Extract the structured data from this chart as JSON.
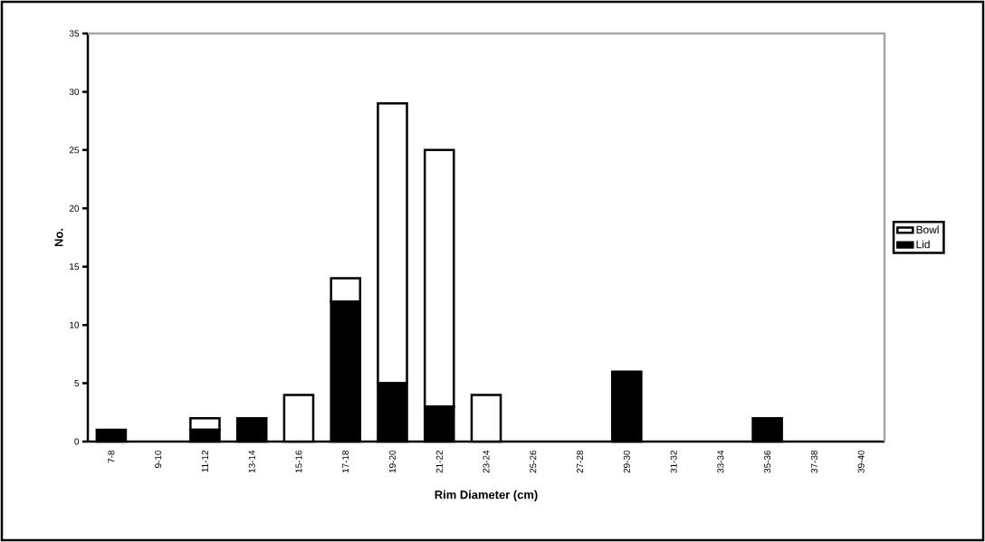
{
  "chart_data": {
    "type": "bar",
    "stacked": true,
    "xlabel": "Rim Diameter (cm)",
    "ylabel": "No.",
    "categories": [
      "7-8",
      "9-10",
      "11-12",
      "13-14",
      "15-16",
      "17-18",
      "19-20",
      "21-22",
      "23-24",
      "25-26",
      "27-28",
      "29-30",
      "31-32",
      "33-34",
      "35-36",
      "37-38",
      "39-40"
    ],
    "series": [
      {
        "name": "Lid",
        "color": "#000000",
        "values": [
          1,
          0,
          1,
          2,
          0,
          12,
          5,
          3,
          0,
          0,
          0,
          6,
          0,
          0,
          2,
          0,
          0
        ]
      },
      {
        "name": "Bowl",
        "color": "#ffffff",
        "values": [
          0,
          0,
          1,
          0,
          4,
          2,
          24,
          22,
          4,
          0,
          0,
          0,
          0,
          0,
          0,
          0,
          0
        ]
      }
    ],
    "ylim": [
      0,
      35
    ],
    "yticks": [
      0,
      5,
      10,
      15,
      20,
      25,
      30,
      35
    ],
    "grid": false,
    "legend": "right"
  }
}
